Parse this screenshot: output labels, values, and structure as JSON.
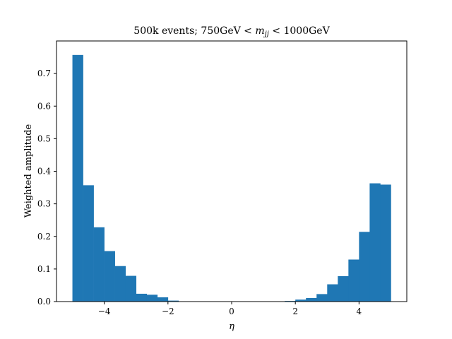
{
  "chart_data": {
    "type": "bar",
    "title": "500k events; 750GeV < m_jj < 1000GeV",
    "title_parts": {
      "prefix": "500k events; 750GeV < ",
      "math_m": "m",
      "math_sub": "jj",
      "suffix": " < 1000GeV"
    },
    "xlabel": "η",
    "ylabel": "Weighted amplitude",
    "xlim": [
      -5.5,
      5.5
    ],
    "ylim": [
      0,
      0.8
    ],
    "xticks": [
      -4,
      -2,
      0,
      2,
      4
    ],
    "xtick_labels": [
      "−4",
      "−2",
      "0",
      "2",
      "4"
    ],
    "yticks": [
      0.0,
      0.1,
      0.2,
      0.3,
      0.4,
      0.5,
      0.6,
      0.7
    ],
    "ytick_labels": [
      "0.0",
      "0.1",
      "0.2",
      "0.3",
      "0.4",
      "0.5",
      "0.6",
      "0.7"
    ],
    "bin_edges": [
      -5.0,
      -4.6667,
      -4.3333,
      -4.0,
      -3.6667,
      -3.3333,
      -3.0,
      -2.6667,
      -2.3333,
      -2.0,
      -1.6667,
      -1.3333,
      -1.0,
      -0.6667,
      -0.3333,
      0.0,
      0.3333,
      0.6667,
      1.0,
      1.3333,
      1.6667,
      2.0,
      2.3333,
      2.6667,
      3.0,
      3.3333,
      3.6667,
      4.0,
      4.3333,
      4.6667,
      5.0
    ],
    "values": [
      0.757,
      0.357,
      0.228,
      0.155,
      0.109,
      0.079,
      0.024,
      0.021,
      0.013,
      0.003,
      0,
      0,
      0,
      0,
      0,
      0,
      0,
      0,
      0,
      0,
      0.002,
      0.006,
      0.011,
      0.023,
      0.053,
      0.078,
      0.129,
      0.214,
      0.363,
      0.359
    ],
    "bar_color": "#1f77b4",
    "grid": false,
    "legend": "none"
  }
}
